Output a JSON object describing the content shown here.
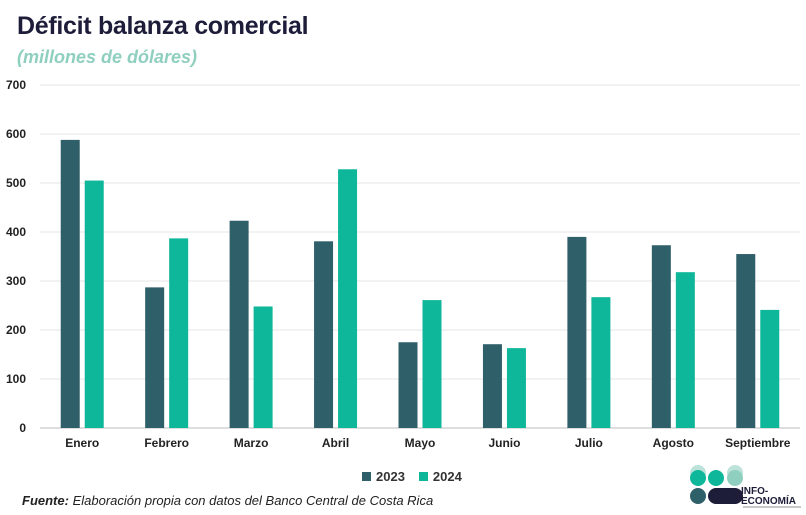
{
  "header": {
    "title": "Déficit balanza comercial",
    "subtitle": "(millones de dólares)"
  },
  "footer": {
    "source_label": "Fuente:",
    "source_text": " Elaboración propia con datos del Banco Central de Costa Rica"
  },
  "logo": {
    "line1": "INFO-",
    "line2": "ECONOMÍA"
  },
  "colors": {
    "series_2023": "#2f5f69",
    "series_2024": "#0fb79a",
    "grid": "#e4e4e4",
    "axis_text": "#222222"
  },
  "chart_data": {
    "type": "bar",
    "title": "Déficit balanza comercial",
    "subtitle": "(millones de dólares)",
    "categories": [
      "Enero",
      "Febrero",
      "Marzo",
      "Abril",
      "Mayo",
      "Junio",
      "Julio",
      "Agosto",
      "Septiembre"
    ],
    "series": [
      {
        "name": "2023",
        "values": [
          588,
          287,
          423,
          381,
          175,
          171,
          390,
          373,
          355
        ]
      },
      {
        "name": "2024",
        "values": [
          505,
          387,
          248,
          528,
          261,
          163,
          267,
          318,
          241
        ]
      }
    ],
    "ylim": [
      0,
      700
    ],
    "yticks": [
      0,
      100,
      200,
      300,
      400,
      500,
      600,
      700
    ],
    "grid": true,
    "legend": "bottom"
  }
}
